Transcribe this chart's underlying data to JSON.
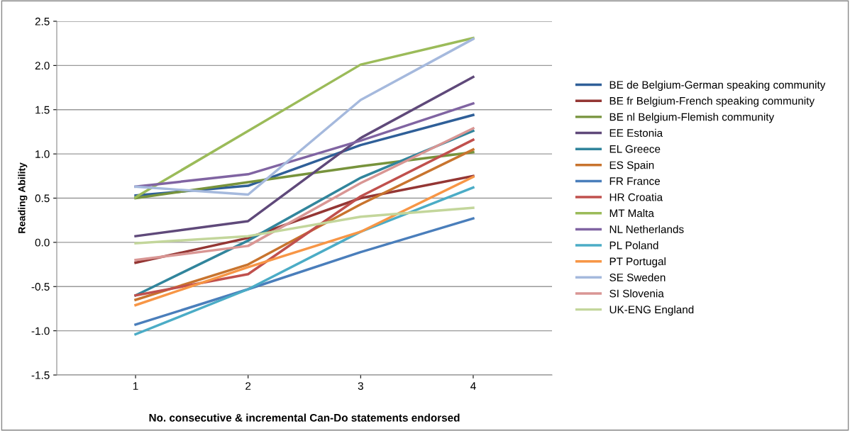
{
  "chart_data": {
    "type": "line",
    "xlabel": "No. consecutive & incremental Can-Do statements endorsed",
    "ylabel": "Reading Ability",
    "categories": [
      "1",
      "2",
      "3",
      "4"
    ],
    "ylim": [
      -1.5,
      2.5
    ],
    "yticks": [
      {
        "value": -1.5,
        "label": "-1.5"
      },
      {
        "value": -1.0,
        "label": "-1.0"
      },
      {
        "value": -0.5,
        "label": "-0.5"
      },
      {
        "value": 0.0,
        "label": "0.0"
      },
      {
        "value": 0.5,
        "label": "0.5"
      },
      {
        "value": 1.0,
        "label": "1.0"
      },
      {
        "value": 1.5,
        "label": "1.5"
      },
      {
        "value": 2.0,
        "label": "2.0"
      },
      {
        "value": 2.5,
        "label": "2.5"
      }
    ],
    "grid": "y",
    "legend": "right",
    "marker": "none",
    "line_style": "solid",
    "series": [
      {
        "name": "BE de Belgium-German speaking community",
        "color": "#2f5f98",
        "values": [
          0.53,
          0.64,
          1.1,
          1.44
        ]
      },
      {
        "name": "BE fr Belgium-French speaking community",
        "color": "#943634",
        "values": [
          -0.23,
          0.05,
          0.5,
          0.75
        ]
      },
      {
        "name": "BE nl Belgium-Flemish community",
        "color": "#77933c",
        "values": [
          0.5,
          0.68,
          0.86,
          1.02
        ]
      },
      {
        "name": "EE Estonia",
        "color": "#5f497a",
        "values": [
          0.07,
          0.24,
          1.18,
          1.87
        ]
      },
      {
        "name": "EL Greece",
        "color": "#31859c",
        "values": [
          -0.6,
          0.02,
          0.73,
          1.26
        ]
      },
      {
        "name": "ES Spain",
        "color": "#c8742e",
        "values": [
          -0.65,
          -0.25,
          0.43,
          1.05
        ]
      },
      {
        "name": "FR France",
        "color": "#4a7ebb",
        "values": [
          -0.93,
          -0.53,
          -0.11,
          0.27
        ]
      },
      {
        "name": "HR Croatia",
        "color": "#c0504d",
        "values": [
          -0.6,
          -0.36,
          0.52,
          1.16
        ]
      },
      {
        "name": "MT Malta",
        "color": "#9bbb59",
        "values": [
          0.51,
          1.26,
          2.01,
          2.31
        ]
      },
      {
        "name": "NL Netherlands",
        "color": "#8064a2",
        "values": [
          0.63,
          0.77,
          1.15,
          1.57
        ]
      },
      {
        "name": "PL Poland",
        "color": "#4bacc6",
        "values": [
          -1.04,
          -0.53,
          0.12,
          0.62
        ]
      },
      {
        "name": "PT Portugal",
        "color": "#f79646",
        "values": [
          -0.71,
          -0.28,
          0.12,
          0.74
        ]
      },
      {
        "name": "SE Sweden",
        "color": "#a5b9dd",
        "values": [
          0.63,
          0.54,
          1.61,
          2.3
        ]
      },
      {
        "name": "SI Slovenia",
        "color": "#d99694",
        "values": [
          -0.2,
          -0.04,
          0.67,
          1.29
        ]
      },
      {
        "name": "UK-ENG England",
        "color": "#c3d69b",
        "values": [
          -0.01,
          0.07,
          0.29,
          0.39
        ]
      }
    ]
  }
}
